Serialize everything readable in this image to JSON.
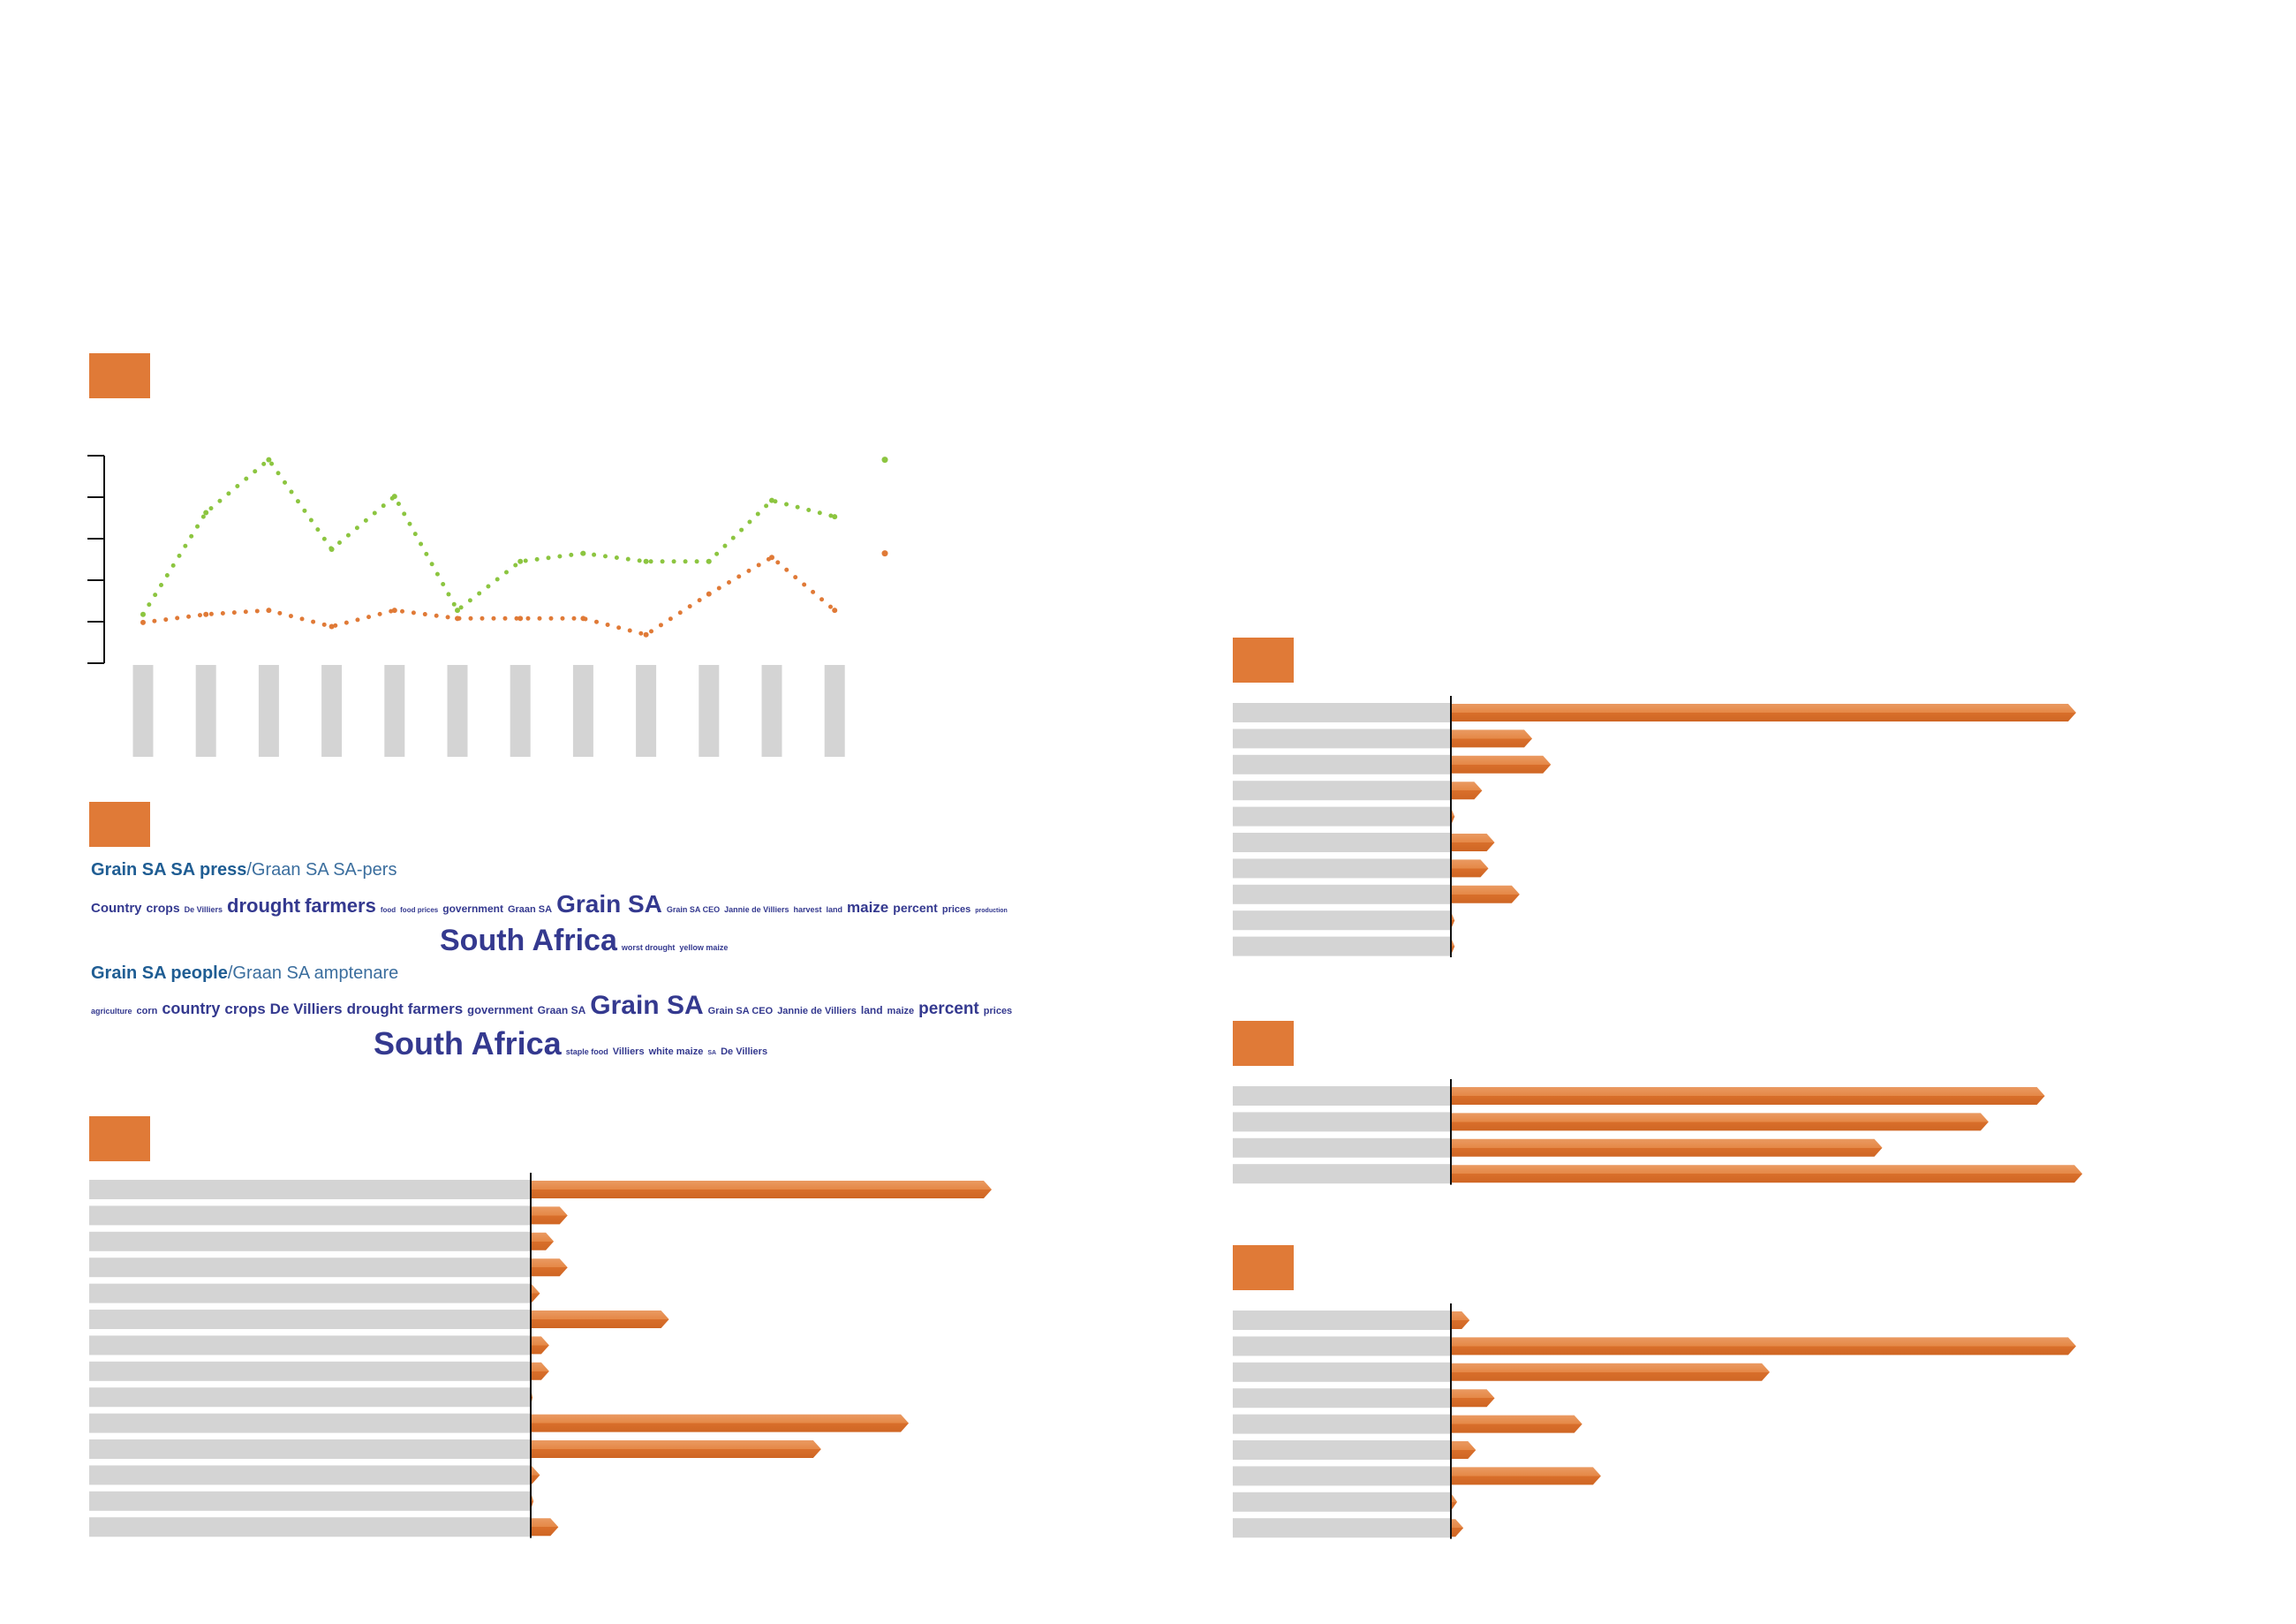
{
  "colors": {
    "accent": "#e07a37",
    "green": "#8cc540",
    "gray_bar": "#d4d4d4",
    "cloud_text": "#34398f",
    "cloud_title": "#1f5d93"
  },
  "chart_data": [
    {
      "type": "line",
      "series": [
        {
          "values": [
            0.4,
            2.9,
            4.2,
            2.0,
            3.3,
            0.5,
            1.7,
            1.9,
            1.7,
            1.7,
            3.2,
            2.8
          ],
          "legend_value": 4.2
        },
        {
          "values": [
            0.2,
            0.4,
            0.5,
            0.1,
            0.5,
            0.3,
            0.3,
            0.3,
            -0.1,
            0.9,
            1.8,
            0.5
          ],
          "legend_value": 1.9
        }
      ],
      "ylim": [
        -0.8,
        4.3
      ],
      "n_ticks": 6,
      "grid": false
    },
    {
      "type": "bar",
      "orientation": "horizontal",
      "values": [
        100,
        8,
        5,
        8,
        2,
        30,
        4,
        4,
        0.4,
        82,
        63,
        2,
        0.6,
        6
      ]
    },
    {
      "type": "bar",
      "orientation": "horizontal",
      "values": [
        100,
        13,
        16,
        5,
        0.6,
        7,
        6,
        11,
        0.6,
        0.6
      ]
    },
    {
      "type": "bar",
      "orientation": "horizontal",
      "values": [
        95,
        86,
        69,
        101
      ]
    },
    {
      "type": "bar",
      "orientation": "horizontal",
      "values": [
        3,
        100,
        51,
        7,
        21,
        4,
        24,
        1,
        2
      ]
    }
  ],
  "word_cloud": [
    {
      "title": "Grain SA SA press",
      "title_alt": "/Graan SA SA-pers",
      "lines": [
        [
          [
            "Country",
            15
          ],
          [
            "crops",
            14
          ],
          [
            "De Villiers",
            9
          ],
          [
            "drought",
            22
          ],
          [
            "farmers",
            22
          ],
          [
            "food",
            8
          ],
          [
            "food prices",
            8
          ],
          [
            "government",
            12
          ],
          [
            "Graan SA",
            11
          ],
          [
            "Grain SA",
            28
          ],
          [
            "Grain SA CEO",
            9
          ],
          [
            "Jannie de Villiers",
            9
          ],
          [
            "harvest",
            9
          ],
          [
            "land",
            9
          ],
          [
            "maize",
            17
          ],
          [
            "percent",
            14
          ],
          [
            "prices",
            11
          ],
          [
            "production",
            7
          ]
        ],
        [
          [
            "South Africa",
            34
          ],
          [
            "worst drought",
            9
          ],
          [
            "yellow maize",
            9
          ]
        ]
      ]
    },
    {
      "title": "Grain SA people",
      "title_alt": "/Graan SA amptenare",
      "lines": [
        [
          [
            "agriculture",
            9
          ],
          [
            "corn",
            11
          ],
          [
            "country",
            18
          ],
          [
            "crops",
            17
          ],
          [
            "De Villiers",
            17
          ],
          [
            "drought",
            17
          ],
          [
            "farmers",
            17
          ],
          [
            "government",
            13
          ],
          [
            "Graan SA",
            12
          ],
          [
            "Grain SA",
            30
          ],
          [
            "Grain SA CEO",
            11
          ],
          [
            "Jannie de Villiers",
            11
          ],
          [
            "land",
            12
          ],
          [
            "maize",
            11
          ],
          [
            "percent",
            19
          ],
          [
            "prices",
            11
          ]
        ],
        [
          [
            "South Africa",
            36
          ],
          [
            "staple food",
            9
          ],
          [
            "Villiers",
            11
          ],
          [
            "white maize",
            11
          ],
          [
            "SA",
            7
          ],
          [
            "De Villiers",
            11
          ]
        ]
      ]
    }
  ]
}
